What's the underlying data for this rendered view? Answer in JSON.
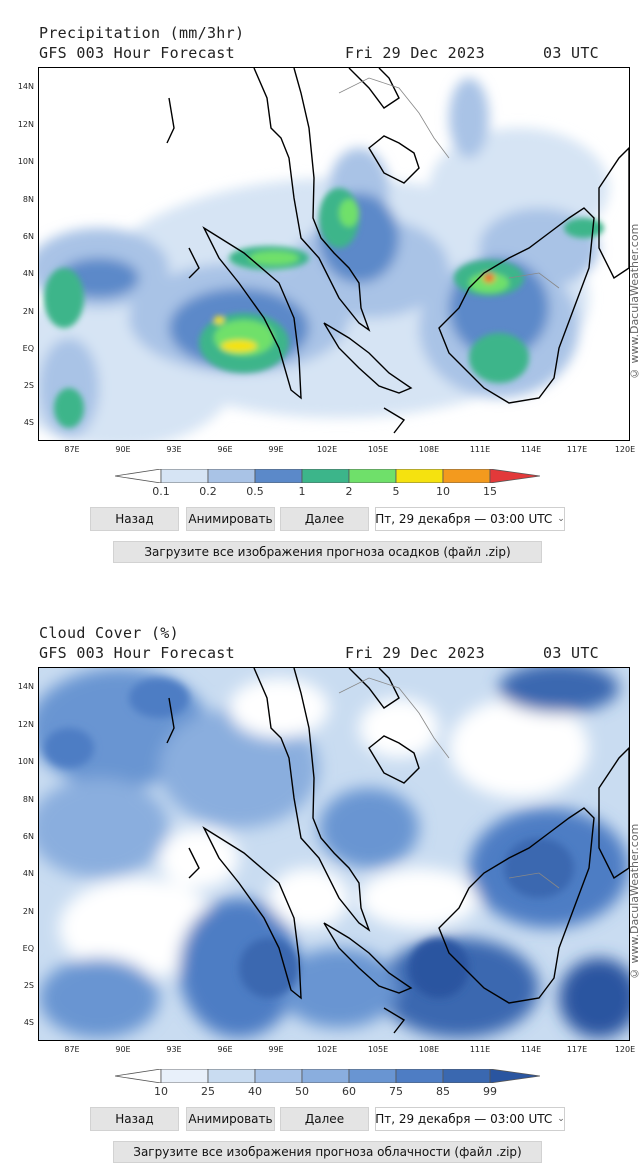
{
  "common": {
    "lat_labels": [
      "14N",
      "12N",
      "10N",
      "8N",
      "6N",
      "4N",
      "2N",
      "EQ",
      "2S",
      "4S"
    ],
    "lon_labels": [
      "87E",
      "90E",
      "93E",
      "96E",
      "99E",
      "102E",
      "105E",
      "108E",
      "111E",
      "114E",
      "117E",
      "120E"
    ],
    "watermark": "© www.DaculaWeather.com"
  },
  "precip": {
    "title_line1": "Precipitation (mm/3hr)",
    "title_left": "GFS 003 Hour Forecast",
    "title_date": "Fri 29 Dec 2023",
    "title_time": "03 UTC",
    "legend_ticks": [
      "0.1",
      "0.2",
      "0.5",
      "1",
      "2",
      "5",
      "10",
      "15"
    ],
    "legend_colors": [
      "#ffffff",
      "#d6e4f4",
      "#a9c3e6",
      "#5b89c9",
      "#3cb58a",
      "#6fe06a",
      "#f5e20f",
      "#f39a1e",
      "#e2393a"
    ],
    "btn_back": "Назад",
    "btn_animate": "Анимировать",
    "btn_next": "Далее",
    "select_value": "Пт, 29 декабря — 03:00 UTC",
    "download_label": "Загрузите все изображения прогноза осадков (файл .zip)"
  },
  "cloud": {
    "title_line1": "Cloud Cover (%)",
    "title_left": "GFS 003 Hour Forecast",
    "title_date": "Fri 29 Dec 2023",
    "title_time": "03 UTC",
    "legend_ticks": [
      "10",
      "25",
      "40",
      "50",
      "60",
      "75",
      "85",
      "99"
    ],
    "legend_colors": [
      "#ffffff",
      "#e8f0fa",
      "#c9dcf1",
      "#a9c4e8",
      "#8aaede",
      "#6995d2",
      "#4e7dc4",
      "#3a68b0",
      "#2a55a0"
    ],
    "btn_back": "Назад",
    "btn_animate": "Анимировать",
    "btn_next": "Далее",
    "select_value": "Пт, 29 декабря — 03:00 UTC",
    "download_label": "Загрузите все изображения прогноза облачности (файл .zip)"
  }
}
